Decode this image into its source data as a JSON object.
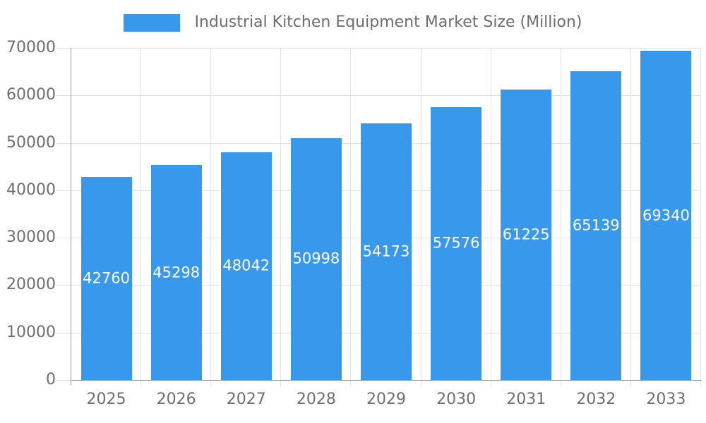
{
  "chart_data": {
    "type": "bar",
    "title": "Industrial Kitchen Equipment Market Size (Million)",
    "categories": [
      "2025",
      "2026",
      "2027",
      "2028",
      "2029",
      "2030",
      "2031",
      "2032",
      "2033"
    ],
    "values": [
      42760,
      45298,
      48042,
      50998,
      54173,
      57576,
      61225,
      65139,
      69340
    ],
    "xlabel": "",
    "ylabel": "",
    "ylim": [
      0,
      70000
    ],
    "ytick_step": 10000,
    "grid": "on",
    "legend_position": "top-center",
    "colors": {
      "bar": "#3899EC",
      "bar_value_label": "#ffffff",
      "axis_text": "#6e6e6e",
      "grid_line": "#e1e1e1",
      "axis_line": "#9a9a9a",
      "background": "#ffffff"
    }
  }
}
